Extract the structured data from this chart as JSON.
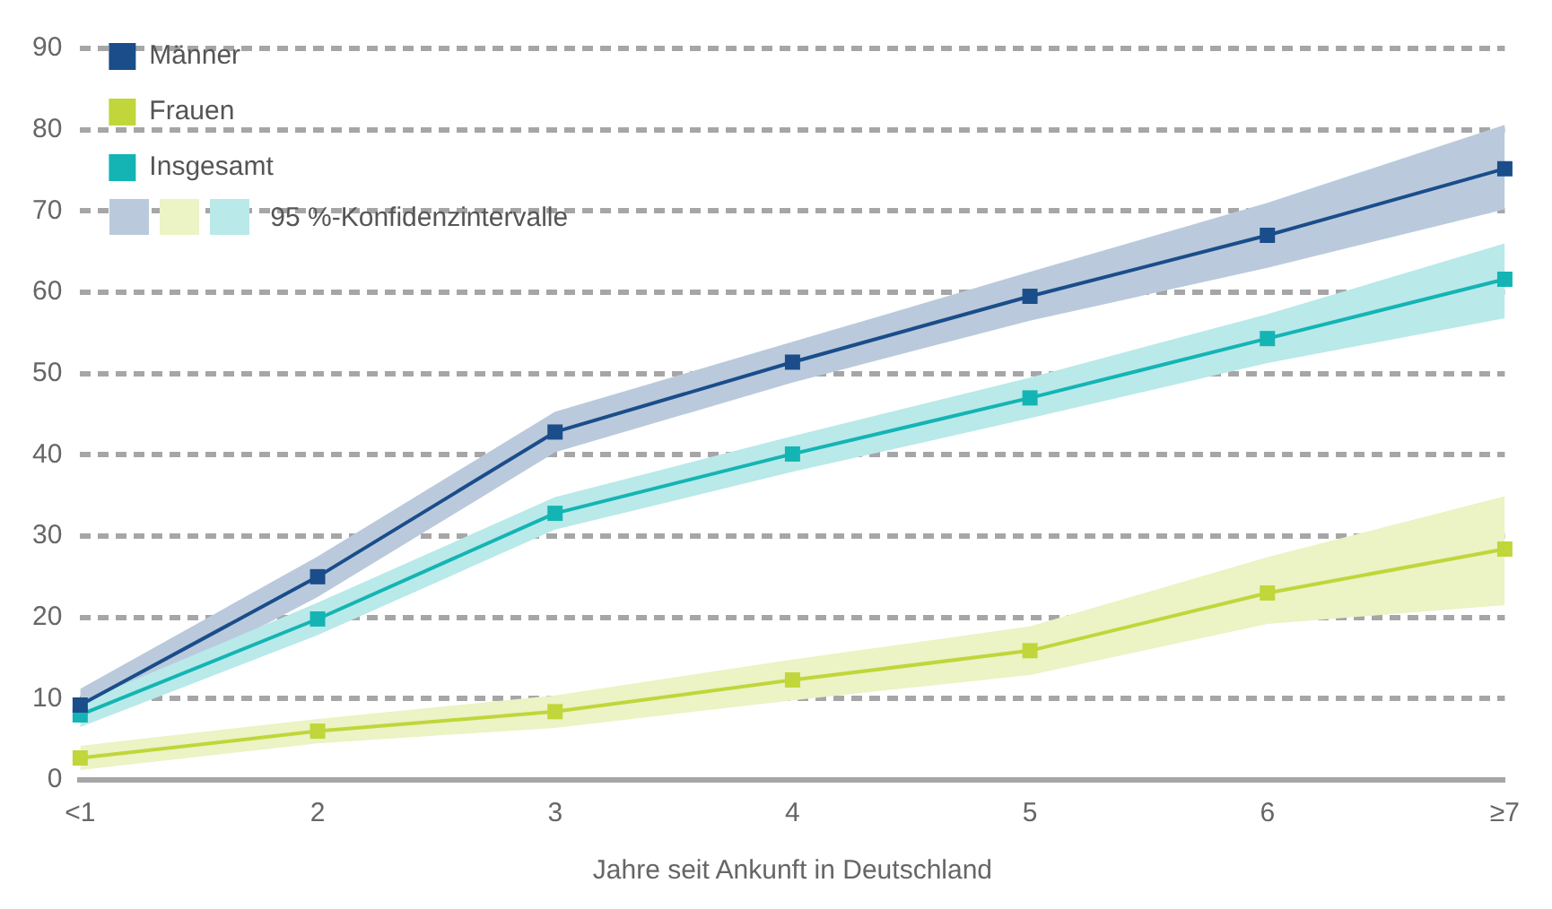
{
  "chart_data": {
    "type": "line",
    "xlabel": "Jahre seit Ankunft in Deutschland",
    "categories": [
      "<1",
      "2",
      "3",
      "4",
      "5",
      "6",
      "≥7"
    ],
    "series": [
      {
        "name": "Männer",
        "color": "#1a4d8a",
        "values": [
          9.2,
          25,
          42.8,
          51.4,
          59.5,
          67,
          75.2
        ],
        "lower": [
          7.2,
          22.5,
          40.3,
          48.9,
          56.5,
          63,
          70.2
        ],
        "upper": [
          11.2,
          27.5,
          45.3,
          53.9,
          62.5,
          71,
          80.6
        ]
      },
      {
        "name": "Frauen",
        "color": "#c0d63a",
        "values": [
          2.7,
          6,
          8.4,
          12.3,
          15.9,
          23,
          28.4
        ],
        "lower": [
          1.2,
          4.5,
          6.4,
          9.8,
          12.9,
          19.2,
          21.5
        ],
        "upper": [
          4.2,
          7.5,
          10.4,
          14.8,
          18.9,
          27.4,
          34.9
        ]
      },
      {
        "name": "Insgesamt",
        "color": "#14b4b4",
        "values": [
          8,
          19.8,
          32.8,
          40.1,
          47,
          54.3,
          61.6
        ],
        "lower": [
          6.5,
          17.8,
          30.8,
          37.9,
          44.5,
          51.3,
          56.8
        ],
        "upper": [
          9.5,
          21.8,
          34.8,
          42.3,
          49.5,
          57.3,
          66
        ]
      }
    ],
    "ylim": [
      0,
      90
    ],
    "yticks": [
      0,
      10,
      20,
      30,
      40,
      50,
      60,
      70,
      80,
      90
    ],
    "grid": "y",
    "legend": "top left",
    "marker": "square",
    "line_style": "solid",
    "annotations": [
      "95 %-Konfidenzintervalle"
    ]
  }
}
